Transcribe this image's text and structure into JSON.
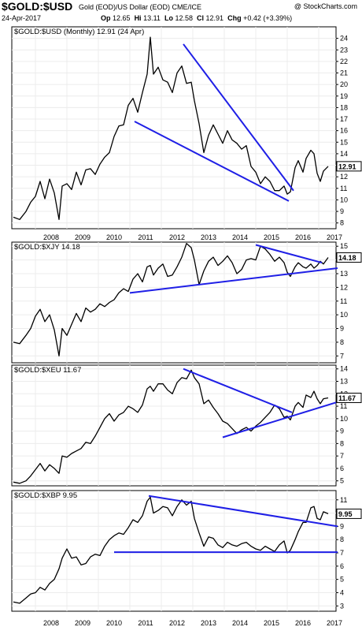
{
  "header": {
    "symbol": "$GOLD:$USD",
    "description": "Gold (EOD)/US Dollar (EOD)  CME/ICE",
    "source_logo": "@ StockCharts.com",
    "date": "24-Apr-2017",
    "op_label": "Op",
    "op": "12.65",
    "hi_label": "Hi",
    "hi": "13.11",
    "lo_label": "Lo",
    "lo": "12.58",
    "cl_label": "Cl",
    "cl": "12.91",
    "chg_label": "Chg",
    "chg": "+0.42 (+3.39%)"
  },
  "chart_data": [
    {
      "type": "line",
      "label": "$GOLD:$USD (Monthly) 12.91 (24 Apr)",
      "last_value_badge": "12.91",
      "last_value": 12.91,
      "ylim": [
        7.5,
        25
      ],
      "y_ticks": [
        8,
        9,
        10,
        11,
        12,
        13,
        14,
        15,
        16,
        17,
        18,
        19,
        20,
        21,
        22,
        23,
        24
      ],
      "x_ticks": [
        "2008",
        "2009",
        "2010",
        "2011",
        "2012",
        "2013",
        "2014",
        "2015",
        "2016",
        "2017"
      ],
      "x": [
        2007.3,
        2007.5,
        2007.7,
        2007.85,
        2008.0,
        2008.15,
        2008.3,
        2008.45,
        2008.6,
        2008.75,
        2008.85,
        2009.0,
        2009.15,
        2009.3,
        2009.45,
        2009.6,
        2009.75,
        2009.9,
        2010.05,
        2010.2,
        2010.35,
        2010.5,
        2010.65,
        2010.8,
        2010.95,
        2011.1,
        2011.25,
        2011.4,
        2011.55,
        2011.65,
        2011.75,
        2011.9,
        2012.05,
        2012.2,
        2012.35,
        2012.5,
        2012.65,
        2012.8,
        2012.95,
        2013.05,
        2013.2,
        2013.35,
        2013.5,
        2013.65,
        2013.8,
        2013.95,
        2014.1,
        2014.25,
        2014.4,
        2014.55,
        2014.7,
        2014.85,
        2015.0,
        2015.15,
        2015.3,
        2015.45,
        2015.6,
        2015.75,
        2015.9,
        2016.0,
        2016.1,
        2016.25,
        2016.35,
        2016.5,
        2016.6,
        2016.75,
        2016.85,
        2016.95,
        2017.05,
        2017.15,
        2017.3
      ],
      "values": [
        8.5,
        8.3,
        9.0,
        9.8,
        10.3,
        11.6,
        10.1,
        11.8,
        10.6,
        8.3,
        11.2,
        11.4,
        10.9,
        12.4,
        11.3,
        12.6,
        12.7,
        12.2,
        13.1,
        13.7,
        14.1,
        15.5,
        16.4,
        16.5,
        18.2,
        18.8,
        17.6,
        19.3,
        20.9,
        24.1,
        20.9,
        21.5,
        20.4,
        20.2,
        19.3,
        21.0,
        21.6,
        20.1,
        20.2,
        18.6,
        16.6,
        14.1,
        15.6,
        16.5,
        15.7,
        14.9,
        16.0,
        15.2,
        14.9,
        14.4,
        14.7,
        12.9,
        12.4,
        11.4,
        12.0,
        11.6,
        10.8,
        10.8,
        11.2,
        10.5,
        10.7,
        12.8,
        13.4,
        12.4,
        13.6,
        14.3,
        14.0,
        12.3,
        11.6,
        12.5,
        12.91
      ],
      "trendlines": [
        {
          "from": [
            2011.15,
            16.8
          ],
          "to": [
            2016.05,
            9.9
          ]
        },
        {
          "from": [
            2012.7,
            23.5
          ],
          "to": [
            2016.2,
            10.8
          ]
        }
      ]
    },
    {
      "type": "line",
      "label": "$GOLD:$XJY 14.18",
      "last_value_badge": "14.18",
      "last_value": 14.18,
      "ylim": [
        6.5,
        15.3
      ],
      "y_ticks": [
        7,
        8,
        9,
        10,
        11,
        12,
        13,
        14,
        15
      ],
      "x": [
        2007.3,
        2007.5,
        2007.7,
        2007.85,
        2008.0,
        2008.15,
        2008.3,
        2008.45,
        2008.6,
        2008.75,
        2008.85,
        2009.0,
        2009.15,
        2009.3,
        2009.45,
        2009.6,
        2009.75,
        2009.9,
        2010.05,
        2010.2,
        2010.35,
        2010.5,
        2010.65,
        2010.8,
        2010.95,
        2011.1,
        2011.25,
        2011.4,
        2011.55,
        2011.65,
        2011.75,
        2011.9,
        2012.05,
        2012.2,
        2012.35,
        2012.5,
        2012.65,
        2012.8,
        2012.95,
        2013.05,
        2013.2,
        2013.35,
        2013.5,
        2013.65,
        2013.8,
        2013.95,
        2014.1,
        2014.25,
        2014.4,
        2014.55,
        2014.7,
        2014.85,
        2015.0,
        2015.15,
        2015.3,
        2015.45,
        2015.6,
        2015.75,
        2015.9,
        2016.0,
        2016.1,
        2016.25,
        2016.35,
        2016.5,
        2016.6,
        2016.75,
        2016.85,
        2016.95,
        2017.05,
        2017.15,
        2017.3
      ],
      "values": [
        8.0,
        7.9,
        8.5,
        9.0,
        9.9,
        10.4,
        9.5,
        10.0,
        8.9,
        7.0,
        9.0,
        8.5,
        9.3,
        10.1,
        9.5,
        10.5,
        10.2,
        10.4,
        10.8,
        10.6,
        10.9,
        11.1,
        11.6,
        11.9,
        11.7,
        12.6,
        13.0,
        12.4,
        13.5,
        13.6,
        12.9,
        13.4,
        13.7,
        12.8,
        12.9,
        13.5,
        14.2,
        15.2,
        14.9,
        14.0,
        12.2,
        13.2,
        13.9,
        14.2,
        13.6,
        13.9,
        14.3,
        13.8,
        13.0,
        13.3,
        14.0,
        14.1,
        14.0,
        15.0,
        14.8,
        14.4,
        13.9,
        14.2,
        13.8,
        13.1,
        12.8,
        13.5,
        13.8,
        13.5,
        13.4,
        13.7,
        13.4,
        13.6,
        13.9,
        13.7,
        14.18
      ],
      "trendlines": [
        {
          "from": [
            2011.0,
            11.6
          ],
          "to": [
            2017.6,
            13.4
          ]
        },
        {
          "from": [
            2015.0,
            15.1
          ],
          "to": [
            2017.1,
            13.8
          ]
        }
      ]
    },
    {
      "type": "line",
      "label": "$GOLD:$XEU 11.67",
      "last_value_badge": "11.67",
      "last_value": 11.67,
      "ylim": [
        4.6,
        14.3
      ],
      "y_ticks": [
        5,
        6,
        7,
        8,
        9,
        10,
        11,
        12,
        13,
        14
      ],
      "x": [
        2007.3,
        2007.5,
        2007.7,
        2007.85,
        2008.0,
        2008.15,
        2008.3,
        2008.45,
        2008.6,
        2008.75,
        2008.85,
        2009.0,
        2009.15,
        2009.3,
        2009.45,
        2009.6,
        2009.75,
        2009.9,
        2010.05,
        2010.2,
        2010.35,
        2010.5,
        2010.65,
        2010.8,
        2010.95,
        2011.1,
        2011.25,
        2011.4,
        2011.55,
        2011.65,
        2011.75,
        2011.9,
        2012.05,
        2012.2,
        2012.35,
        2012.5,
        2012.65,
        2012.8,
        2012.95,
        2013.05,
        2013.2,
        2013.35,
        2013.5,
        2013.65,
        2013.8,
        2013.95,
        2014.1,
        2014.25,
        2014.4,
        2014.55,
        2014.7,
        2014.85,
        2015.0,
        2015.15,
        2015.3,
        2015.45,
        2015.6,
        2015.75,
        2015.9,
        2016.0,
        2016.1,
        2016.25,
        2016.35,
        2016.5,
        2016.6,
        2016.75,
        2016.85,
        2016.95,
        2017.05,
        2017.15,
        2017.3
      ],
      "values": [
        4.9,
        4.8,
        5.0,
        5.4,
        5.9,
        6.4,
        5.8,
        6.3,
        6.0,
        5.6,
        7.0,
        6.9,
        7.2,
        7.4,
        7.6,
        8.1,
        8.0,
        8.6,
        9.3,
        10.0,
        10.4,
        9.8,
        10.3,
        10.5,
        11.0,
        10.8,
        10.5,
        11.1,
        12.4,
        12.6,
        12.2,
        12.8,
        12.8,
        12.3,
        12.0,
        12.9,
        13.3,
        13.2,
        13.9,
        13.3,
        12.8,
        11.2,
        11.5,
        10.9,
        10.4,
        9.8,
        9.6,
        9.2,
        8.8,
        9.1,
        9.3,
        9.0,
        9.4,
        9.7,
        10.1,
        10.5,
        11.1,
        10.8,
        10.1,
        10.2,
        9.9,
        11.0,
        11.3,
        10.9,
        11.9,
        11.7,
        12.2,
        11.6,
        11.2,
        11.6,
        11.67
      ],
      "trendlines": [
        {
          "from": [
            2013.95,
            8.5
          ],
          "to": [
            2017.55,
            11.3
          ]
        },
        {
          "from": [
            2012.7,
            14.0
          ],
          "to": [
            2016.15,
            10.5
          ]
        }
      ]
    },
    {
      "type": "line",
      "label": "$GOLD:$XBP 9.95",
      "last_value_badge": "9.95",
      "last_value": 9.95,
      "ylim": [
        2.6,
        11.7
      ],
      "y_ticks": [
        3,
        4,
        5,
        6,
        7,
        8,
        9,
        10,
        11
      ],
      "x_ticks": [
        "2008",
        "2009",
        "2010",
        "2011",
        "2012",
        "2013",
        "2014",
        "2015",
        "2016",
        "2017"
      ],
      "x": [
        2007.3,
        2007.5,
        2007.7,
        2007.85,
        2008.0,
        2008.15,
        2008.3,
        2008.45,
        2008.6,
        2008.75,
        2008.85,
        2009.0,
        2009.15,
        2009.3,
        2009.45,
        2009.6,
        2009.75,
        2009.9,
        2010.05,
        2010.2,
        2010.35,
        2010.5,
        2010.65,
        2010.8,
        2010.95,
        2011.1,
        2011.25,
        2011.4,
        2011.55,
        2011.65,
        2011.75,
        2011.9,
        2012.05,
        2012.2,
        2012.35,
        2012.5,
        2012.65,
        2012.8,
        2012.95,
        2013.05,
        2013.2,
        2013.35,
        2013.5,
        2013.65,
        2013.8,
        2013.95,
        2014.1,
        2014.25,
        2014.4,
        2014.55,
        2014.7,
        2014.85,
        2015.0,
        2015.15,
        2015.3,
        2015.45,
        2015.6,
        2015.75,
        2015.9,
        2016.0,
        2016.1,
        2016.25,
        2016.35,
        2016.5,
        2016.6,
        2016.75,
        2016.85,
        2016.95,
        2017.05,
        2017.15,
        2017.3
      ],
      "values": [
        3.3,
        3.2,
        3.6,
        3.9,
        4.0,
        4.4,
        4.2,
        4.7,
        5.0,
        5.8,
        6.6,
        7.3,
        6.6,
        6.7,
        6.1,
        6.2,
        6.7,
        6.9,
        6.8,
        7.5,
        8.0,
        8.3,
        8.5,
        8.4,
        8.9,
        9.5,
        9.3,
        9.8,
        10.9,
        11.2,
        10.0,
        10.2,
        10.5,
        10.4,
        9.8,
        10.5,
        11.0,
        10.6,
        10.9,
        9.6,
        8.5,
        7.5,
        8.2,
        8.1,
        7.6,
        7.4,
        7.8,
        7.6,
        7.5,
        7.7,
        7.8,
        7.5,
        7.3,
        7.2,
        7.5,
        7.3,
        7.1,
        7.6,
        7.9,
        7.0,
        7.2,
        8.0,
        8.6,
        9.3,
        9.3,
        10.4,
        10.5,
        9.6,
        9.5,
        10.1,
        9.95
      ],
      "trendlines": [
        {
          "from": [
            2011.6,
            11.3
          ],
          "to": [
            2017.6,
            9.0
          ]
        },
        {
          "from": [
            2010.5,
            7.05
          ],
          "to": [
            2017.6,
            7.05
          ]
        }
      ]
    }
  ]
}
